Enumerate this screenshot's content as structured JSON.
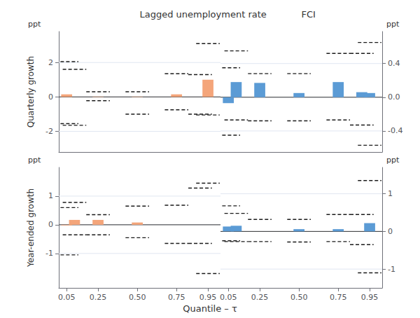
{
  "chart_data": [
    {
      "type": "bar",
      "title": "Lagged unemployment rate",
      "ylabel": "Quarterly growth",
      "annotations": [
        "ppt"
      ],
      "x": [
        0.05,
        0.1,
        0.25,
        0.5,
        0.75,
        0.9,
        0.95
      ],
      "values": [
        0.15,
        0.0,
        0.02,
        0.02,
        0.15,
        0.0,
        1.0
      ],
      "upper": [
        2.05,
        1.6,
        0.3,
        0.3,
        1.35,
        1.3,
        3.1
      ],
      "lower": [
        -1.55,
        -1.65,
        -0.22,
        -1.0,
        -0.75,
        -1.0,
        -1.05
      ],
      "color": "#F4A57A",
      "xlim": [
        0.0,
        1.03
      ],
      "xticks": [
        0.05,
        0.25,
        {
          "value": 0.5,
          "label": "0.50"
        },
        0.75,
        0.95
      ],
      "ylim": [
        -3.2,
        3.8
      ],
      "yticks": [
        -2,
        0,
        2
      ],
      "grid": true,
      "tick_labels": "y"
    },
    {
      "type": "bar",
      "title": "FCI",
      "annotations": [
        "ppt"
      ],
      "x": [
        0.05,
        0.1,
        0.25,
        0.5,
        0.75,
        0.9,
        0.95
      ],
      "values": [
        -0.07,
        0.18,
        0.17,
        0.05,
        0.18,
        0.06,
        0.05
      ],
      "upper": [
        0.35,
        0.55,
        0.28,
        0.28,
        0.52,
        0.52,
        0.65
      ],
      "lower": [
        -0.45,
        -0.27,
        -0.28,
        -0.28,
        -0.27,
        -0.33,
        -0.57
      ],
      "color": "#5B9BD5",
      "xlim": [
        0.0,
        1.03
      ],
      "xticks": [
        0.05,
        0.25,
        {
          "value": 0.5,
          "label": "0.50"
        },
        0.75,
        0.95
      ],
      "ylim": [
        -0.65,
        0.78
      ],
      "yticks": [
        -0.4,
        {
          "value": 0,
          "label": "0.0"
        },
        0.4
      ],
      "grid": true,
      "tick_labels": "y"
    },
    {
      "type": "bar",
      "ylabel": "Year-ended growth",
      "xlabel": "Quantile – τ",
      "annotations": [
        "ppt"
      ],
      "x": [
        0.05,
        0.1,
        0.25,
        0.5,
        0.75,
        0.9,
        0.95
      ],
      "values": [
        -0.02,
        0.17,
        0.17,
        0.08,
        0.0,
        0.0,
        0.0
      ],
      "upper": [
        0.6,
        0.78,
        0.35,
        0.65,
        0.68,
        1.28,
        1.45
      ],
      "lower": [
        -1.05,
        -0.35,
        -0.35,
        -0.45,
        -0.65,
        -0.65,
        -1.7
      ],
      "color": "#F4A57A",
      "xlim": [
        0.0,
        1.03
      ],
      "xticks": [
        0.05,
        0.25,
        {
          "value": 0.5,
          "label": "0.50"
        },
        0.75,
        0.95
      ],
      "ylim": [
        -2.2,
        2.0
      ],
      "yticks": [
        -1,
        0,
        1
      ],
      "grid": true
    },
    {
      "type": "bar",
      "annotations": [
        "ppt"
      ],
      "x": [
        0.05,
        0.1,
        0.25,
        0.5,
        0.75,
        0.9,
        0.95
      ],
      "values": [
        0.13,
        0.15,
        0.0,
        0.06,
        0.06,
        0.0,
        0.22
      ],
      "upper": [
        0.68,
        0.48,
        0.32,
        0.32,
        0.45,
        0.45,
        1.35
      ],
      "lower": [
        -0.25,
        -0.27,
        -0.27,
        -0.28,
        -0.27,
        -0.35,
        -1.1
      ],
      "color": "#5B9BD5",
      "xlim": [
        0.0,
        1.03
      ],
      "xticks": [
        0.05,
        0.25,
        {
          "value": 0.5,
          "label": "0.50"
        },
        0.75,
        0.95
      ],
      "ylim": [
        -1.5,
        1.7
      ],
      "yticks": [
        -1,
        0,
        1
      ],
      "grid": true
    }
  ]
}
